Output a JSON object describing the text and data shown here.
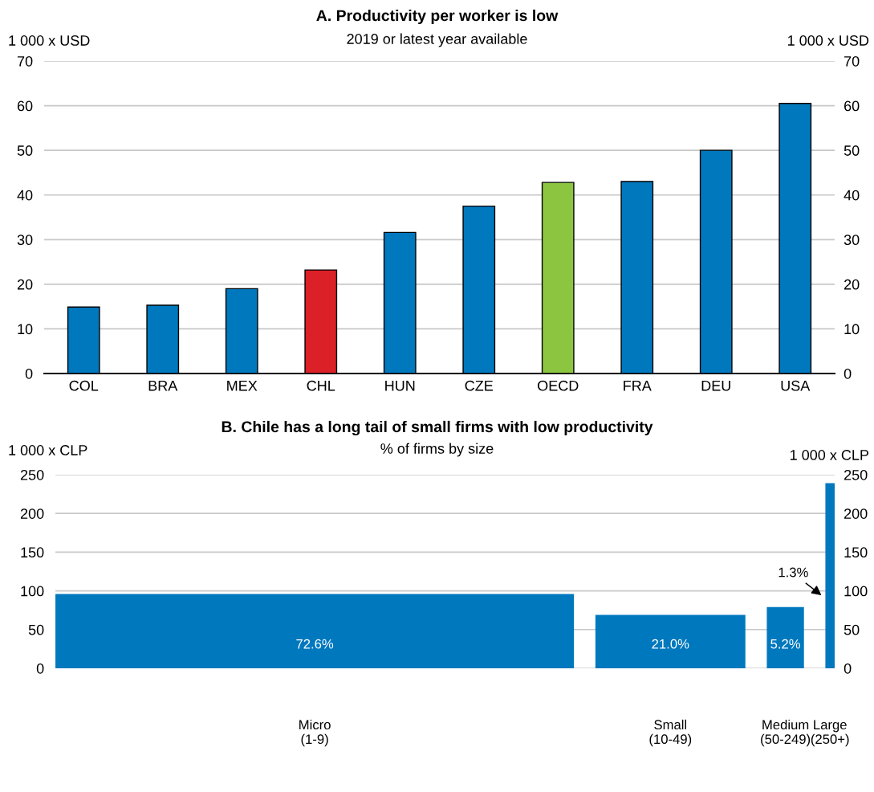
{
  "chart_data": [
    {
      "type": "bar",
      "title": "A. Productivity per worker is low",
      "subtitle": "2019 or latest year available",
      "ylabel": "1 000 x USD",
      "y2label": "1 000 x USD",
      "categories": [
        "COL",
        "BRA",
        "MEX",
        "CHL",
        "HUN",
        "CZE",
        "OECD",
        "FRA",
        "DEU",
        "USA"
      ],
      "values": [
        14.9,
        15.3,
        19.0,
        23.2,
        31.6,
        37.5,
        42.8,
        43.0,
        50.0,
        60.5
      ],
      "colors": [
        "#0078be",
        "#0078be",
        "#0078be",
        "#dc2027",
        "#0078be",
        "#0078be",
        "#8cc641",
        "#0078be",
        "#0078be",
        "#0078be"
      ],
      "ylim": [
        0,
        70
      ],
      "yticks": [
        0,
        10,
        20,
        30,
        40,
        50,
        60,
        70
      ],
      "y2lim": [
        0,
        70
      ],
      "y2ticks": [
        0,
        10,
        20,
        30,
        40,
        50,
        60,
        70
      ],
      "grid": "y"
    },
    {
      "type": "bar",
      "title": "B. Chile has a long tail of small firms with low productivity",
      "subtitle": "% of firms by size",
      "ylabel": "1 000 x CLP",
      "y2label": "1 000 x CLP",
      "categories": [
        "Micro\n(1-9)",
        "Small\n(10-49)",
        "Medium\n(50-249)",
        "Large\n(250+)"
      ],
      "values": [
        96,
        69,
        79,
        239
      ],
      "annotations": [
        "72.6%",
        "21.0%",
        "5.2%",
        "1.3%"
      ],
      "color": "#0078be",
      "ylim": [
        0,
        250
      ],
      "yticks": [
        0,
        50,
        100,
        150,
        200,
        250
      ],
      "y2lim": [
        0,
        250
      ],
      "y2ticks": [
        0,
        50,
        100,
        150,
        200,
        250
      ],
      "grid": "y"
    }
  ]
}
